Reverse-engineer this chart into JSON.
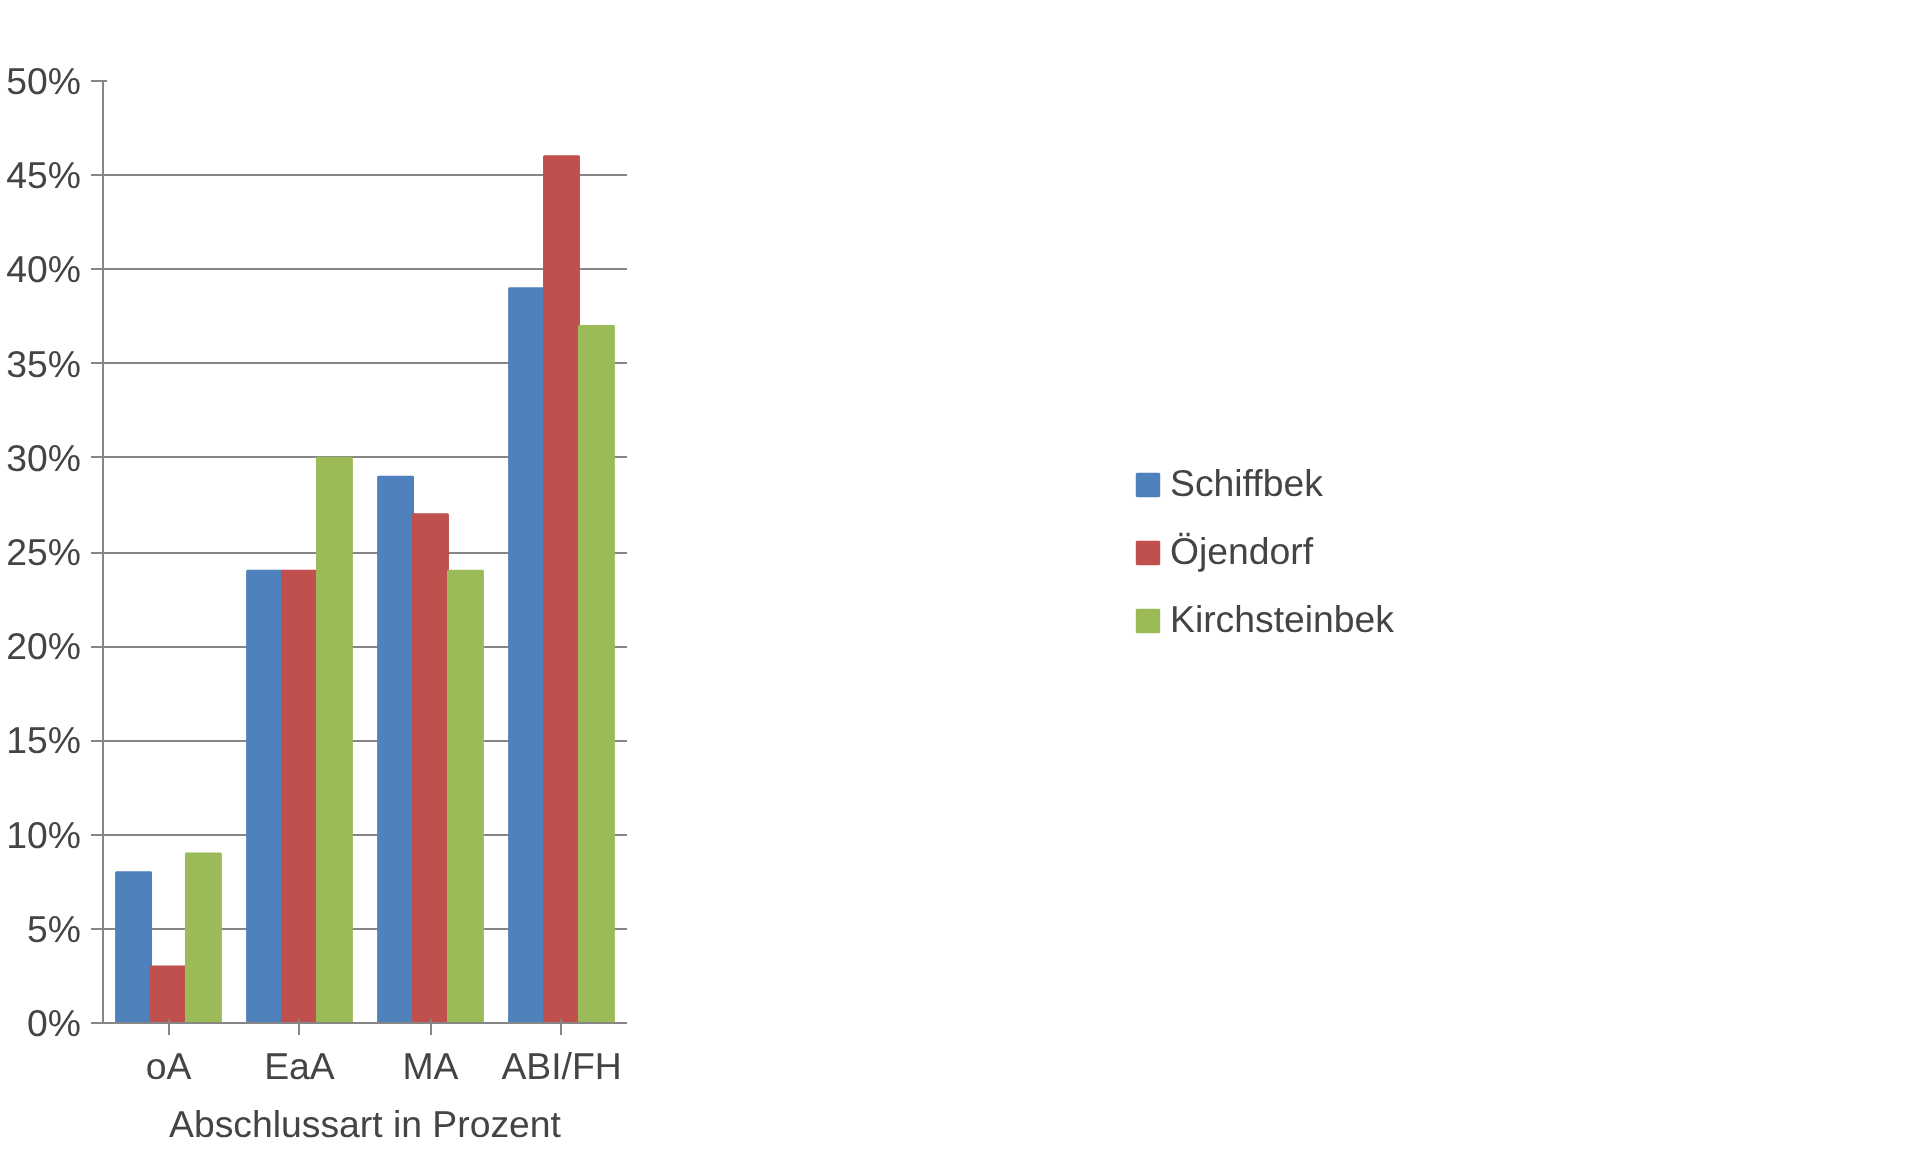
{
  "chart_data": {
    "type": "bar",
    "xlabel": "Abschlussart in Prozent",
    "categories": [
      "oA",
      "EaA",
      "MA",
      "ABI/FH"
    ],
    "series": [
      {
        "name": "Schiffbek",
        "color": "#4f81bd",
        "values": [
          8,
          24,
          29,
          39
        ]
      },
      {
        "name": "Öjendorf",
        "color": "#c0504d",
        "values": [
          3,
          24,
          27,
          46
        ]
      },
      {
        "name": "Kirchsteinbek",
        "color": "#9bbb59",
        "values": [
          9,
          30,
          24,
          37
        ]
      }
    ],
    "ylim": [
      0,
      50
    ],
    "yticks": [
      {
        "value": 0,
        "label": "0%"
      },
      {
        "value": 5,
        "label": "5%"
      },
      {
        "value": 10,
        "label": "10%"
      },
      {
        "value": 15,
        "label": "15%"
      },
      {
        "value": 20,
        "label": "20%"
      },
      {
        "value": 25,
        "label": "25%"
      },
      {
        "value": 30,
        "label": "30%"
      },
      {
        "value": 35,
        "label": "35%"
      },
      {
        "value": 40,
        "label": "40%"
      },
      {
        "value": 45,
        "label": "45%"
      },
      {
        "value": 50,
        "label": "50%"
      }
    ],
    "grid": "y",
    "legend": "right"
  }
}
